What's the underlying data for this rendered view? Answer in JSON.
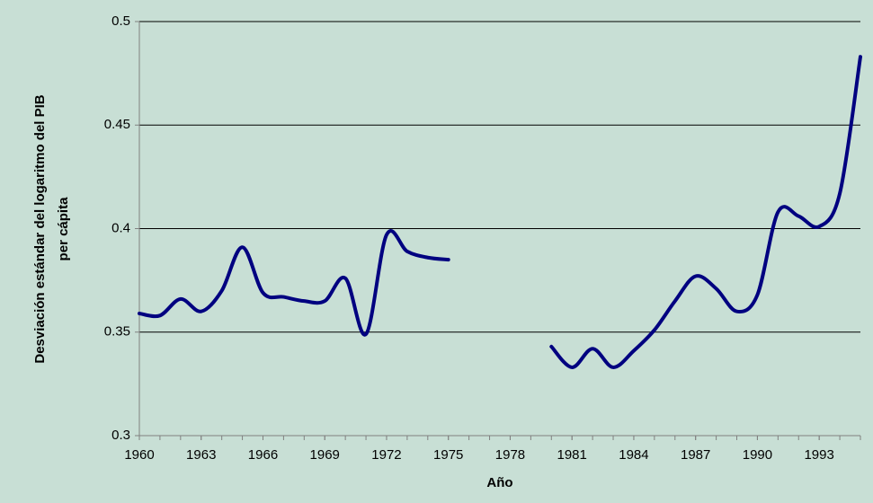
{
  "chart_data": {
    "type": "line",
    "xlabel": "Año",
    "ylabel": [
      "Desviación estándar del logaritmo del PIB",
      "per cápita"
    ],
    "x": [
      1960,
      1961,
      1962,
      1963,
      1964,
      1965,
      1966,
      1967,
      1968,
      1969,
      1970,
      1971,
      1972,
      1973,
      1974,
      1975,
      1976,
      1977,
      1978,
      1979,
      1980,
      1981,
      1982,
      1983,
      1984,
      1985,
      1986,
      1987,
      1988,
      1989,
      1990,
      1991,
      1992,
      1993,
      1994,
      1995
    ],
    "series": [
      {
        "color": "#000080",
        "values": [
          0.359,
          0.358,
          0.366,
          0.36,
          0.37,
          0.391,
          0.369,
          0.367,
          0.365,
          0.365,
          0.376,
          0.349,
          0.397,
          0.389,
          0.386,
          0.385,
          null,
          null,
          null,
          null,
          0.343,
          0.333,
          0.342,
          0.333,
          0.341,
          0.351,
          0.365,
          0.377,
          0.371,
          0.36,
          0.368,
          0.408,
          0.406,
          0.401,
          0.417,
          0.483
        ]
      }
    ],
    "xlim": [
      1960,
      1995
    ],
    "xticks": [
      1960,
      1963,
      1966,
      1969,
      1972,
      1975,
      1978,
      1981,
      1984,
      1987,
      1990,
      1993
    ],
    "ylim": [
      0.3,
      0.5
    ],
    "yticks": [
      0.3,
      0.35,
      0.4,
      0.45,
      0.5
    ],
    "grid": true
  }
}
